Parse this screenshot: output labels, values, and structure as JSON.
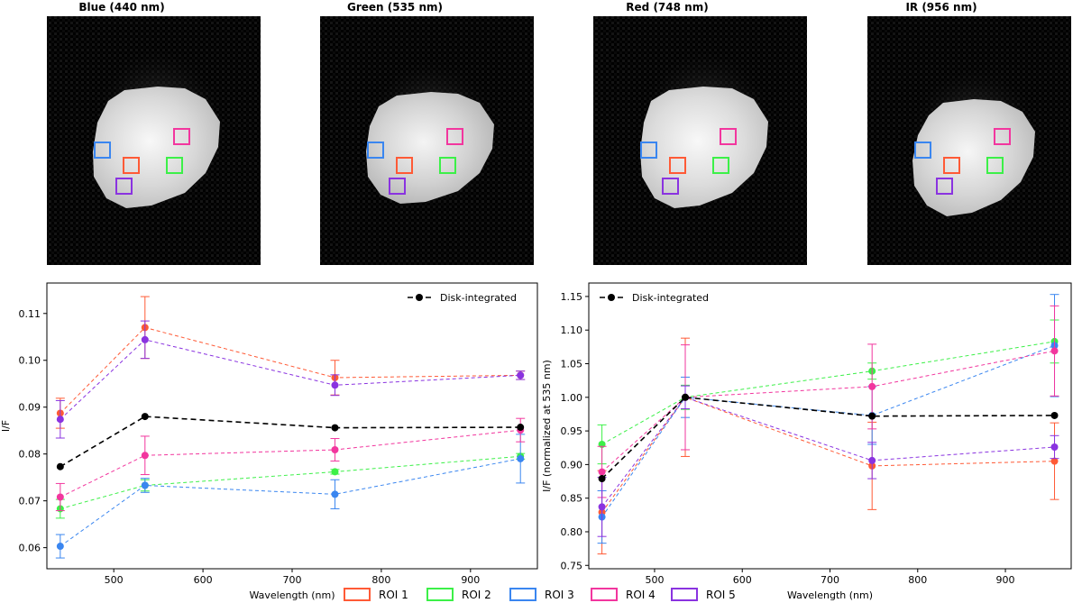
{
  "colors": {
    "roi1": "#ff5a36",
    "roi2": "#3cf048",
    "roi3": "#3a86f0",
    "roi4": "#f2369e",
    "roi5": "#8a33e0",
    "disk": "#000000"
  },
  "panels": [
    {
      "title": "Blue (440 nm)",
      "band": "blue"
    },
    {
      "title": "Green (535 nm)",
      "band": "green"
    },
    {
      "title": "Red (748 nm)",
      "band": "red"
    },
    {
      "title": "IR (956 nm)",
      "band": "ir"
    }
  ],
  "legend": {
    "roi_items": [
      "ROI 1",
      "ROI 2",
      "ROI 3",
      "ROI 4",
      "ROI 5"
    ],
    "disk_label": "Disk-integrated"
  },
  "chart_data": [
    {
      "type": "line",
      "title": "",
      "xlabel": "Wavelength (nm)",
      "ylabel": "I/F",
      "xlim": [
        425,
        975
      ],
      "ylim": [
        0.0555,
        0.1165
      ],
      "xticks": [
        500,
        600,
        700,
        800,
        900
      ],
      "yticks": [
        0.06,
        0.07,
        0.08,
        0.09,
        0.1,
        0.11
      ],
      "ytick_labels": [
        "0.06",
        "0.07",
        "0.08",
        "0.09",
        "0.10",
        "0.11"
      ],
      "x": [
        440,
        535,
        748,
        956
      ],
      "legend": "top-right",
      "series": [
        {
          "name": "ROI 1",
          "color_key": "roi1",
          "values": [
            0.0887,
            0.107,
            0.0963,
            0.0968
          ],
          "errors": [
            0.0032,
            0.0066,
            0.0037,
            0.0009
          ]
        },
        {
          "name": "ROI 2",
          "color_key": "roi2",
          "values": [
            0.0683,
            0.0733,
            0.0762,
            0.0795
          ],
          "errors": [
            0.002,
            0.0012,
            0.0005,
            0.0006
          ]
        },
        {
          "name": "ROI 3",
          "color_key": "roi3",
          "values": [
            0.0603,
            0.0733,
            0.0714,
            0.079
          ],
          "errors": [
            0.0025,
            0.0015,
            0.0031,
            0.0052
          ]
        },
        {
          "name": "ROI 4",
          "color_key": "roi4",
          "values": [
            0.0708,
            0.0797,
            0.0809,
            0.0851
          ],
          "errors": [
            0.0029,
            0.0041,
            0.0024,
            0.0025
          ]
        },
        {
          "name": "ROI 5",
          "color_key": "roi5",
          "values": [
            0.0874,
            0.1044,
            0.0947,
            0.0968
          ],
          "errors": [
            0.004,
            0.004,
            0.0022,
            0.0009
          ]
        },
        {
          "name": "Disk-integrated",
          "color_key": "disk",
          "values": [
            0.0773,
            0.088,
            0.0856,
            0.0857
          ],
          "errors": [
            0,
            0,
            0,
            0
          ],
          "dashed": true
        }
      ]
    },
    {
      "type": "line",
      "title": "",
      "xlabel": "Wavelength (nm)",
      "ylabel": "I/F (normalized at 535 nm)",
      "xlim": [
        425,
        975
      ],
      "ylim": [
        0.745,
        1.17
      ],
      "xticks": [
        500,
        600,
        700,
        800,
        900
      ],
      "yticks": [
        0.75,
        0.8,
        0.85,
        0.9,
        0.95,
        1.0,
        1.05,
        1.1,
        1.15
      ],
      "ytick_labels": [
        "0.75",
        "0.80",
        "0.85",
        "0.90",
        "0.95",
        "1.00",
        "1.05",
        "1.10",
        "1.15"
      ],
      "x": [
        440,
        535,
        748,
        956
      ],
      "legend": "top-left",
      "series": [
        {
          "name": "ROI 1",
          "color_key": "roi1",
          "values": [
            0.829,
            1.0,
            0.898,
            0.905
          ],
          "errors": [
            0.062,
            0.088,
            0.065,
            0.057
          ]
        },
        {
          "name": "ROI 2",
          "color_key": "roi2",
          "values": [
            0.93,
            1.0,
            1.039,
            1.083
          ],
          "errors": [
            0.029,
            0.018,
            0.012,
            0.032
          ]
        },
        {
          "name": "ROI 3",
          "color_key": "roi3",
          "values": [
            0.822,
            1.0,
            0.973,
            1.077
          ],
          "errors": [
            0.039,
            0.03,
            0.043,
            0.076
          ]
        },
        {
          "name": "ROI 4",
          "color_key": "roi4",
          "values": [
            0.889,
            1.0,
            1.016,
            1.069
          ],
          "errors": [
            0.038,
            0.078,
            0.063,
            0.067
          ]
        },
        {
          "name": "ROI 5",
          "color_key": "roi5",
          "values": [
            0.837,
            1.0,
            0.906,
            0.926
          ],
          "errors": [
            0.044,
            0.017,
            0.027,
            0.017
          ]
        },
        {
          "name": "Disk-integrated",
          "color_key": "disk",
          "values": [
            0.879,
            1.0,
            0.972,
            0.973
          ],
          "errors": [
            0,
            0,
            0,
            0
          ],
          "dashed": true
        }
      ]
    }
  ]
}
